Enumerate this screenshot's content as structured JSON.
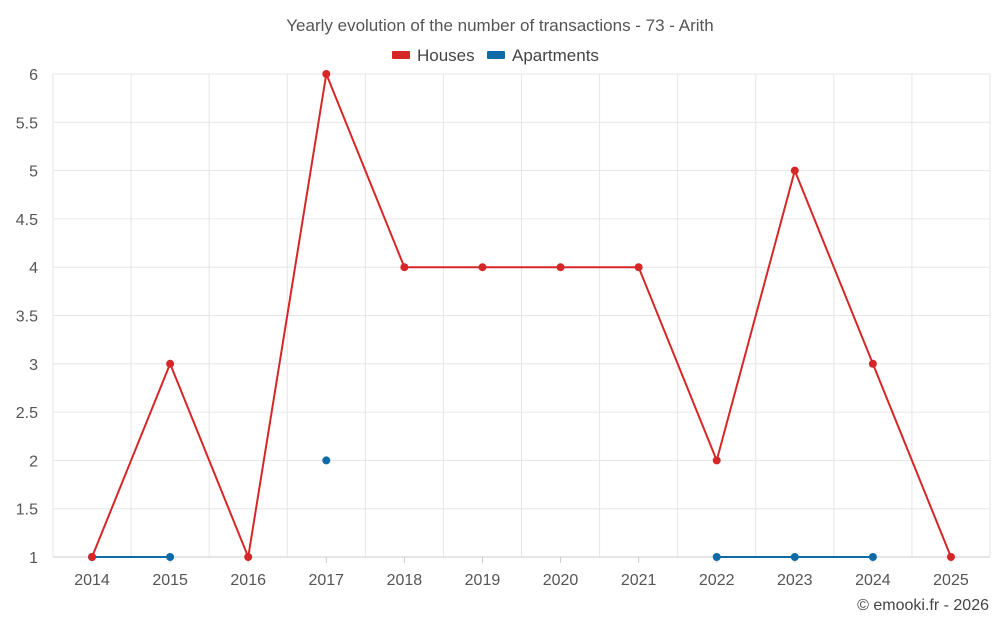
{
  "chart_data": {
    "type": "line",
    "title": "Yearly evolution of the number of transactions - 73 - Arith",
    "categories": [
      "2014",
      "2015",
      "2016",
      "2017",
      "2018",
      "2019",
      "2020",
      "2021",
      "2022",
      "2023",
      "2024",
      "2025"
    ],
    "yticks": [
      "1",
      "1.5",
      "2",
      "2.5",
      "3",
      "3.5",
      "4",
      "4.5",
      "5",
      "5.5",
      "6"
    ],
    "ylim": [
      1,
      6
    ],
    "series": [
      {
        "name": "Houses",
        "color": "#d62728",
        "values": [
          1,
          3,
          1,
          6,
          4,
          4,
          4,
          4,
          2,
          5,
          3,
          1
        ]
      },
      {
        "name": "Apartments",
        "color": "#0e6ba8",
        "values": [
          1,
          1,
          null,
          2,
          null,
          null,
          null,
          null,
          1,
          1,
          1,
          null
        ]
      }
    ],
    "legend_position": "top-center",
    "grid": true
  },
  "credit": "© emooki.fr - 2026"
}
